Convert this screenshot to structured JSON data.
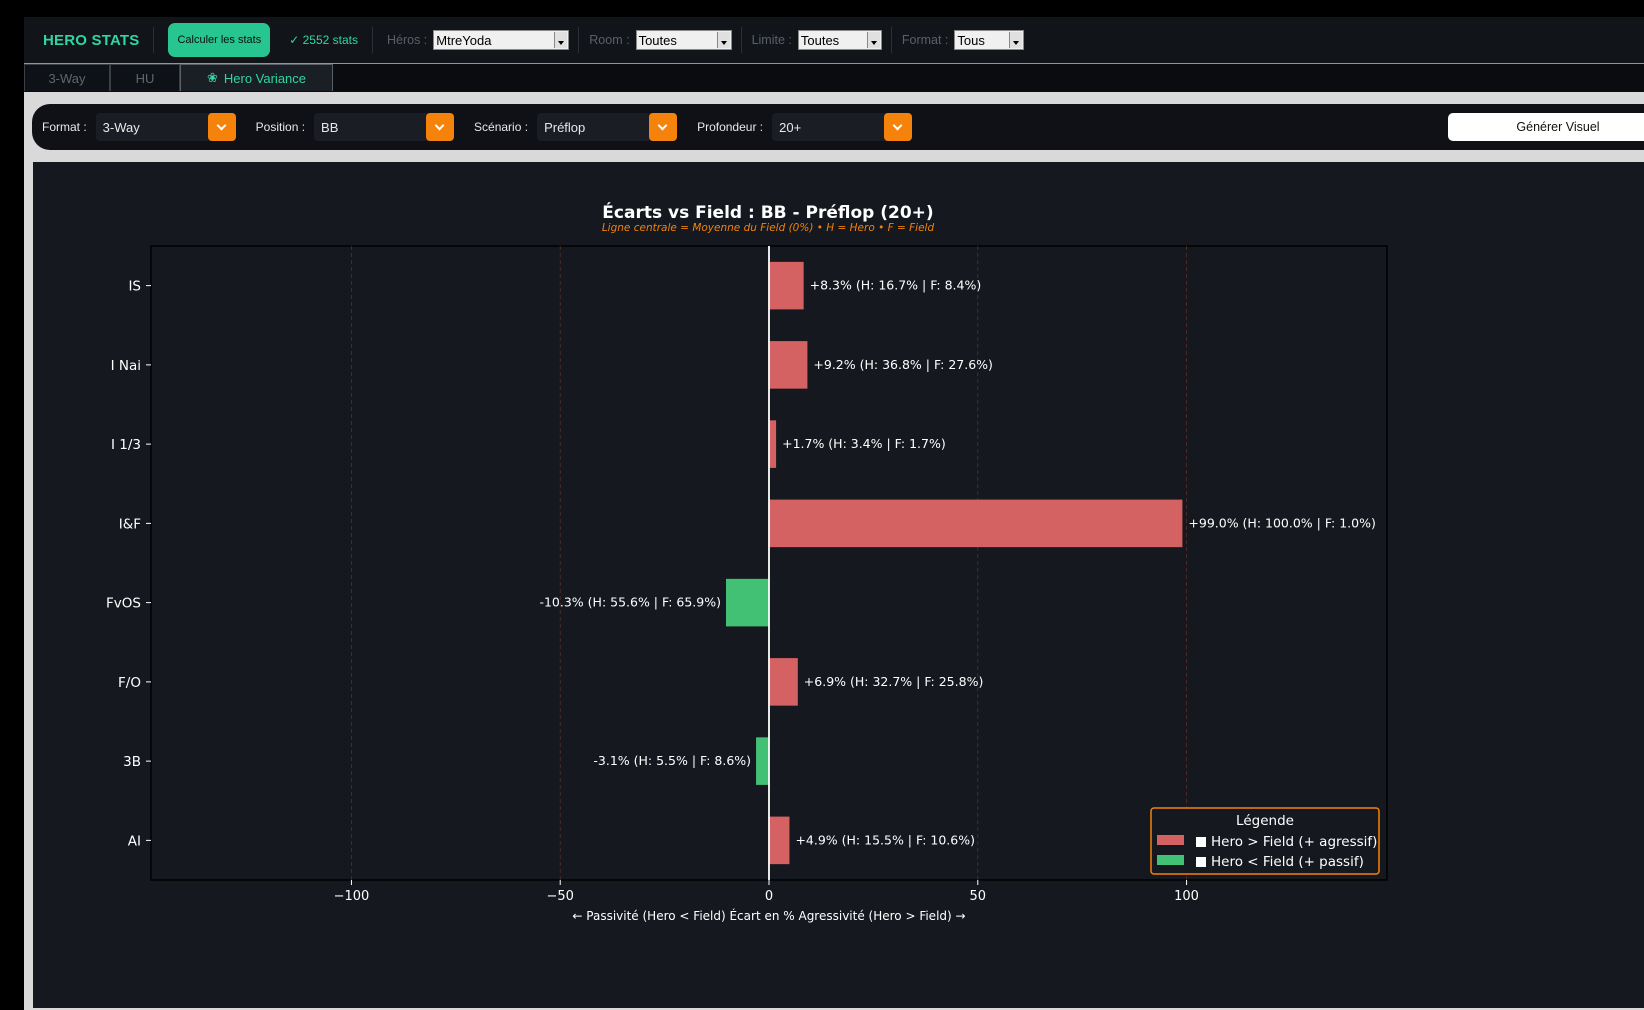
{
  "header": {
    "brand": "HERO STATS",
    "compute_button": "Calculer les stats",
    "stats_count": "✓ 2552 stats",
    "filters": [
      {
        "label": "Héros :",
        "value": "MtreYoda"
      },
      {
        "label": "Room :",
        "value": "Toutes"
      },
      {
        "label": "Limite :",
        "value": "Toutes"
      },
      {
        "label": "Format :",
        "value": "Tous"
      }
    ]
  },
  "tabs": [
    {
      "label": "3-Way",
      "active": false
    },
    {
      "label": "HU",
      "active": false
    },
    {
      "label": "Hero Variance",
      "active": true,
      "icon": "cog-icon"
    }
  ],
  "filterbar": {
    "format_label": "Format :",
    "format_value": "3-Way",
    "position_label": "Position :",
    "position_value": "BB",
    "scenario_label": "Scénario :",
    "scenario_value": "Préflop",
    "depth_label": "Profondeur :",
    "depth_value": "20+",
    "generate_button": "Générer Visuel"
  },
  "colors": {
    "accent": "#2fd6a3",
    "orange": "#f5820b",
    "positive_bar": "#d56262",
    "negative_bar": "#42c073"
  },
  "chart_data": {
    "type": "bar",
    "orientation": "horizontal",
    "title": "Écarts vs Field : BB - Préflop (20+)",
    "subtitle": "Ligne centrale = Moyenne du Field (0%)  •  H = Hero  •  F = Field",
    "xlabel": "← Passivité (Hero < Field)          Écart en %          Agressivité (Hero > Field) →",
    "xlim": [
      -148,
      148
    ],
    "xticks": [
      -100,
      -50,
      0,
      50,
      100
    ],
    "xtick_labels": [
      "−100",
      "−50",
      "0",
      "50",
      "100"
    ],
    "grid": "vertical dashed",
    "categories": [
      "IS",
      "I Nai",
      "I 1/3",
      "I&F",
      "FvOS",
      "F/O",
      "3B",
      "AI"
    ],
    "values": [
      8.3,
      9.2,
      1.7,
      99.0,
      -10.3,
      6.9,
      -3.1,
      4.9
    ],
    "data_labels": [
      "+8.3% (H: 16.7% | F: 8.4%)",
      "+9.2% (H: 36.8% | F: 27.6%)",
      "+1.7% (H: 3.4% | F: 1.7%)",
      "+99.0% (H: 100.0% | F: 1.0%)",
      "-10.3% (H: 55.6% | F: 65.9%)",
      "+6.9% (H: 32.7% | F: 25.8%)",
      "-3.1% (H: 5.5% | F: 8.6%)",
      "+4.9% (H: 15.5% | F: 10.6%)"
    ],
    "legend": {
      "title": "Légende",
      "position": "bottom-right",
      "items": [
        "Hero > Field (+ agressif)",
        "Hero < Field (+ passif)"
      ]
    }
  }
}
